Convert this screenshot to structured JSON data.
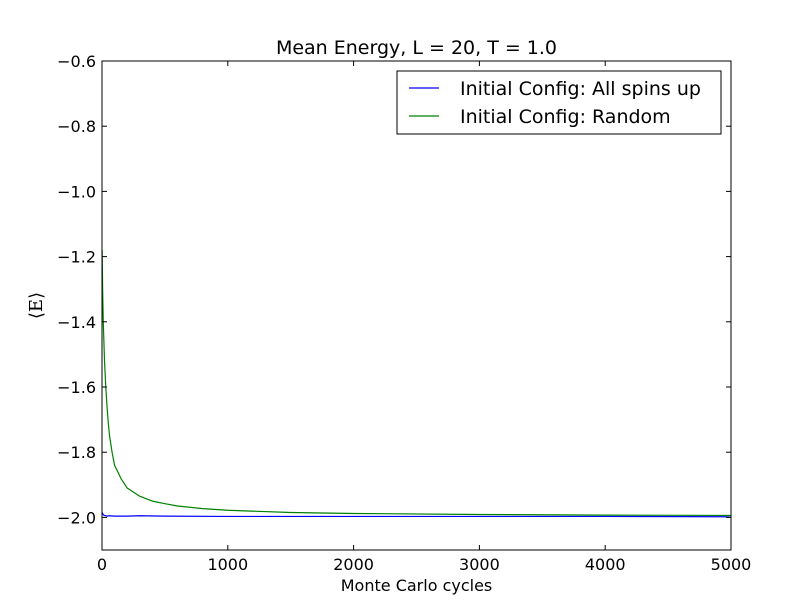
{
  "chart_data": {
    "type": "line",
    "title": "Mean Energy, L = 20, T = 1.0",
    "xlabel": "Monte Carlo cycles",
    "ylabel": "⟨E⟩",
    "xlim": [
      0,
      5000
    ],
    "ylim": [
      -2.1,
      -0.6
    ],
    "xticks": [
      0,
      1000,
      2000,
      3000,
      4000,
      5000
    ],
    "xtick_labels": [
      "0",
      "1000",
      "2000",
      "3000",
      "4000",
      "5000"
    ],
    "yticks": [
      -2.0,
      -1.8,
      -1.6,
      -1.4,
      -1.2,
      -1.0,
      -0.8,
      -0.6
    ],
    "ytick_labels": [
      "−2.0",
      "−1.8",
      "−1.6",
      "−1.4",
      "−1.2",
      "−1.0",
      "−0.8",
      "−0.6"
    ],
    "grid": false,
    "legend_position": "top-right",
    "series": [
      {
        "name": "Initial Config: All spins up",
        "color": "#0000ff",
        "x": [
          1,
          10,
          20,
          40,
          60,
          100,
          200,
          300,
          500,
          1000,
          2000,
          3000,
          4000,
          4950,
          5000
        ],
        "y": [
          -1.985,
          -1.992,
          -1.994,
          -1.996,
          -1.995,
          -1.996,
          -1.996,
          -1.995,
          -1.996,
          -1.997,
          -1.997,
          -1.997,
          -1.997,
          -1.998,
          -1.999
        ]
      },
      {
        "name": "Initial Config: Random",
        "color": "#008000",
        "x": [
          1,
          5,
          10,
          20,
          30,
          40,
          50,
          60,
          80,
          100,
          150,
          200,
          300,
          400,
          500,
          600,
          800,
          1000,
          1500,
          2000,
          3000,
          4000,
          5000
        ],
        "y": [
          -1.18,
          -1.3,
          -1.4,
          -1.52,
          -1.6,
          -1.66,
          -1.71,
          -1.75,
          -1.8,
          -1.84,
          -1.88,
          -1.91,
          -1.935,
          -1.95,
          -1.958,
          -1.965,
          -1.973,
          -1.978,
          -1.985,
          -1.988,
          -1.991,
          -1.993,
          -1.994
        ]
      }
    ]
  }
}
